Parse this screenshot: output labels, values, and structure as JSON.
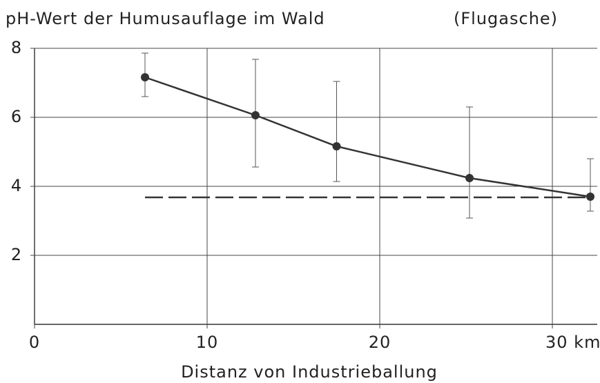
{
  "chart_data": {
    "type": "line",
    "title": "pH-Wert der Humusauflage im Wald",
    "subtitle": "(Flugasche)",
    "x_label": "Distanz von Industrieballung",
    "x": [
      6.4,
      12.8,
      17.5,
      25.2,
      32.2
    ],
    "series": [
      {
        "color": "#333333",
        "values": [
          7.16,
          6.06,
          5.16,
          4.24,
          3.7
        ],
        "upper": [
          7.86,
          7.68,
          7.04,
          6.3,
          4.8
        ],
        "lower": [
          6.6,
          4.56,
          4.14,
          3.08,
          3.28
        ]
      }
    ],
    "reference_line": {
      "y": 3.68,
      "x": [
        6.4,
        32.2
      ],
      "color": "#333333",
      "dashed": true
    },
    "xlim": [
      0,
      32.6
    ],
    "xticks": [
      0,
      10,
      20,
      {
        "value": 30,
        "label": "30 km"
      }
    ],
    "ylim": [
      0,
      8
    ],
    "yticks": [
      2,
      4,
      6,
      8
    ],
    "grid": true
  }
}
